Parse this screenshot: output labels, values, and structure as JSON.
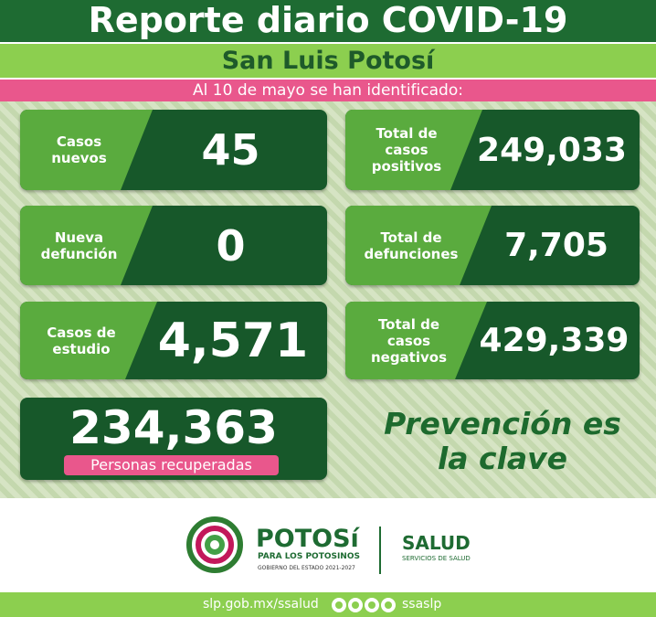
{
  "header": {
    "title": "Reporte diario COVID-19",
    "subtitle": "San Luis Potosí",
    "date_line": "Al 10 de mayo se han identificado:"
  },
  "cards": [
    {
      "label": "Casos nuevos",
      "value": "45"
    },
    {
      "label": "Total de casos positivos",
      "value": "249,033"
    },
    {
      "label": "Nueva defunción",
      "value": "0"
    },
    {
      "label": "Total de defunciones",
      "value": "7,705"
    },
    {
      "label": "Casos de estudio",
      "value": "4,571"
    },
    {
      "label": "Total de casos negativos",
      "value": "429,339"
    }
  ],
  "recovered": {
    "value": "234,363",
    "label": "Personas recuperadas"
  },
  "slogan": "Prevención es la clave",
  "logo": {
    "name": "POTOSí",
    "tagline": "PARA LOS POTOSINOS",
    "government": "GOBIERNO DEL ESTADO 2021-2027",
    "health": "SALUD",
    "health_sub": "SERVICIOS DE SALUD"
  },
  "footer": {
    "url": "slp.gob.mx/ssalud",
    "handle": "ssaslp"
  }
}
